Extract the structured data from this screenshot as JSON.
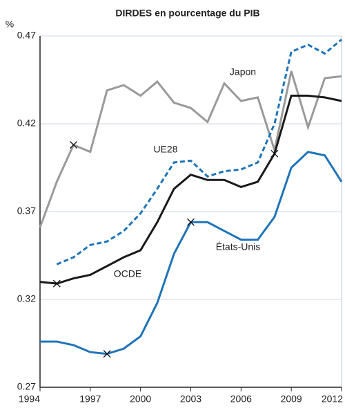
{
  "chart_data": {
    "type": "line",
    "title": "DIRDES en pourcentage du PIB",
    "ylabel": "%",
    "x": [
      1994,
      1995,
      1996,
      1997,
      1998,
      1999,
      2000,
      2001,
      2002,
      2003,
      2004,
      2005,
      2006,
      2007,
      2008,
      2009,
      2010,
      2011,
      2012
    ],
    "xlim": [
      1994,
      2012
    ],
    "xticks": [
      1994,
      1997,
      2000,
      2003,
      2006,
      2009,
      2012
    ],
    "ylim": [
      0.27,
      0.47
    ],
    "yticks": [
      0.27,
      0.32,
      0.37,
      0.42,
      0.47
    ],
    "grid": true,
    "series": [
      {
        "name": "Japon",
        "color": "#9a9a9a",
        "dash": false,
        "markers": [
          2
        ],
        "values": [
          0.361,
          0.387,
          0.408,
          0.404,
          0.439,
          0.442,
          0.436,
          0.444,
          0.432,
          0.429,
          0.421,
          0.443,
          0.433,
          0.435,
          0.405,
          0.45,
          0.418,
          0.446,
          0.447
        ]
      },
      {
        "name": "UE28",
        "color": "#1f74b8",
        "dash": true,
        "markers": [],
        "values": [
          null,
          0.34,
          0.344,
          0.351,
          0.353,
          0.359,
          0.369,
          0.383,
          0.398,
          0.399,
          0.39,
          0.393,
          0.394,
          0.398,
          0.42,
          0.461,
          0.465,
          0.46,
          0.468
        ]
      },
      {
        "name": "OCDE",
        "color": "#1a1a1a",
        "dash": false,
        "markers": [
          1,
          14
        ],
        "values": [
          0.33,
          0.329,
          0.332,
          0.334,
          0.339,
          0.344,
          0.348,
          0.364,
          0.383,
          0.391,
          0.388,
          0.388,
          0.384,
          0.387,
          0.403,
          0.436,
          0.436,
          0.435,
          0.433
        ]
      },
      {
        "name": "États-Unis",
        "color": "#1f74b8",
        "dash": false,
        "markers": [
          4,
          9
        ],
        "values": [
          0.296,
          0.296,
          0.294,
          0.29,
          0.289,
          0.292,
          0.299,
          0.318,
          0.346,
          0.364,
          0.364,
          0.359,
          0.354,
          0.354,
          0.367,
          0.395,
          0.404,
          0.402,
          0.387
        ]
      }
    ]
  }
}
